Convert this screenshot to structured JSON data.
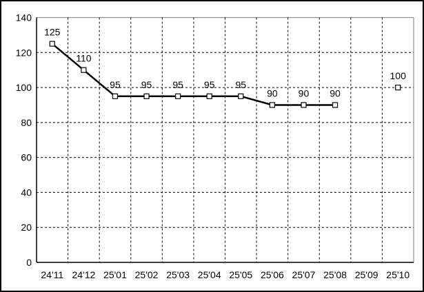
{
  "figure": {
    "background_color": "#ffffff",
    "outer_border_color": "#000000"
  },
  "chart_data": {
    "type": "line",
    "title": "",
    "xlabel": "",
    "ylabel": "",
    "categories": [
      "24'11",
      "24'12",
      "25'01",
      "25'02",
      "25'03",
      "25'04",
      "25'05",
      "25'06",
      "25'07",
      "25'08",
      "25'09",
      "25'10"
    ],
    "series": [
      {
        "name": "value-series",
        "values": [
          125,
          110,
          95,
          95,
          95,
          95,
          95,
          90,
          90,
          90,
          null,
          100
        ],
        "line_color": "#000000",
        "marker": "open-square",
        "marker_fill": "#ffffff",
        "marker_stroke": "#000000"
      }
    ],
    "show_data_labels": true,
    "ylim": [
      0,
      140
    ],
    "y_ticks": [
      0,
      20,
      40,
      60,
      80,
      100,
      120,
      140
    ],
    "grid": {
      "on": true,
      "style": "dashed",
      "color": "#000000"
    },
    "plot_border": {
      "left_color": "#000000",
      "bottom_color": "#000000",
      "top_color": "#909090",
      "right_color": "#909090"
    },
    "legend": "none"
  }
}
